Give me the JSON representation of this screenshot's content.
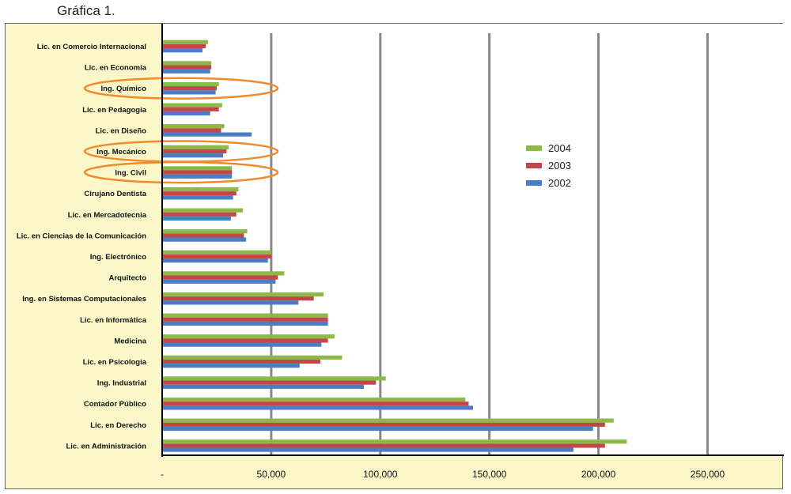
{
  "caption": "Gráfica 1.",
  "chart_data": {
    "type": "bar",
    "orientation": "horizontal",
    "title": "",
    "xlabel": "",
    "ylabel": "",
    "xlim": [
      0,
      285000
    ],
    "xticks": [
      0,
      50000,
      100000,
      150000,
      200000,
      250000
    ],
    "xtick_labels": [
      "-",
      "50,000",
      "100,000",
      "150,000",
      "200,000",
      "250,000"
    ],
    "grid": true,
    "legend_position": "right",
    "categories": [
      "Lic. en Comercio Internacional",
      "Lic. en Economía",
      "Ing. Químico",
      "Lic. en Pedagogía",
      "Lic. en Diseño",
      "Ing. Mecánico",
      "Ing. Civil",
      "Cirujano Dentista",
      "Lic. en Mercadotecnia",
      "Lic. en Ciencias de la Comunicación",
      "Ing. Electrónico",
      "Arquitecto",
      "Ing. en Sistemas Computacionales",
      "Lic. en Informática",
      "Medicina",
      "Lic. en Psicología",
      "Ing. Industrial",
      "Contador Público",
      "Lic. en Derecho",
      "Lic. en Administración"
    ],
    "highlighted_categories": [
      "Ing. Químico",
      "Ing. Mecánico",
      "Ing. Civil"
    ],
    "series": [
      {
        "name": "2004",
        "color": "#8db84a",
        "values": [
          21000,
          22500,
          26000,
          27500,
          28500,
          30500,
          32000,
          35000,
          37000,
          39000,
          50000,
          56000,
          74000,
          76000,
          79000,
          82500,
          102500,
          139000,
          207000,
          213000
        ]
      },
      {
        "name": "2003",
        "color": "#c0474a",
        "values": [
          20000,
          22500,
          25000,
          26000,
          27000,
          29500,
          32000,
          34000,
          34000,
          37500,
          50000,
          53000,
          69500,
          76000,
          76000,
          72500,
          98000,
          140500,
          203000,
          203000
        ]
      },
      {
        "name": "2002",
        "color": "#4a7dc2",
        "values": [
          18500,
          22000,
          24500,
          22000,
          41000,
          28000,
          32000,
          32500,
          31500,
          38500,
          48500,
          52000,
          62500,
          76000,
          73000,
          63000,
          92500,
          142500,
          197500,
          188500
        ]
      }
    ]
  }
}
